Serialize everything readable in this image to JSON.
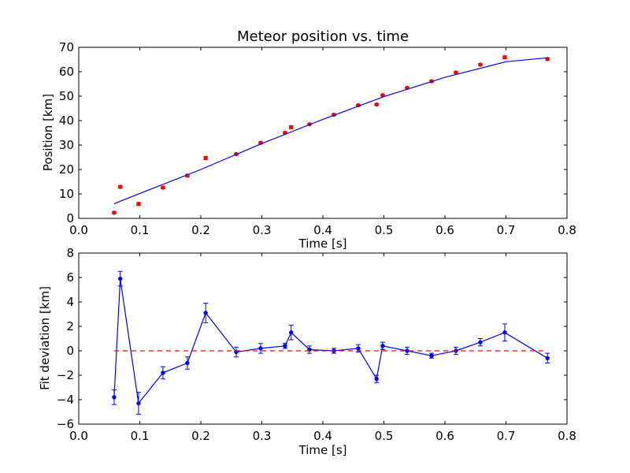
{
  "chart_data": [
    {
      "type": "scatter",
      "title": "Meteor position vs. time",
      "xlabel": "Time [s]",
      "ylabel": "Position [km]",
      "xlim": [
        0.0,
        0.8
      ],
      "ylim": [
        0,
        70
      ],
      "xticks": [
        "0.0",
        "0.1",
        "0.2",
        "0.3",
        "0.4",
        "0.5",
        "0.6",
        "0.7",
        "0.8"
      ],
      "yticks": [
        "0",
        "10",
        "20",
        "30",
        "40",
        "50",
        "60",
        "70"
      ],
      "grid": false,
      "series": [
        {
          "style": "points-with-errorbars",
          "color": "#ff0000",
          "x": [
            0.058,
            0.068,
            0.098,
            0.138,
            0.178,
            0.208,
            0.258,
            0.298,
            0.338,
            0.348,
            0.378,
            0.418,
            0.458,
            0.488,
            0.498,
            0.538,
            0.578,
            0.618,
            0.658,
            0.698,
            0.768
          ],
          "y": [
            2.3,
            12.9,
            5.9,
            12.6,
            17.5,
            24.7,
            26.3,
            30.9,
            35.0,
            37.3,
            38.5,
            42.4,
            46.3,
            46.6,
            50.4,
            53.4,
            56.1,
            59.7,
            62.9,
            65.9,
            65.2
          ],
          "err": [
            0.5,
            0.5,
            0.6,
            0.5,
            0.5,
            0.6,
            0.4,
            0.4,
            0.3,
            0.6,
            0.3,
            0.3,
            0.3,
            0.3,
            0.3,
            0.3,
            0.3,
            0.3,
            0.4,
            0.6,
            0.5
          ]
        },
        {
          "style": "line",
          "color": "#0000ff",
          "x": [
            0.058,
            0.1,
            0.2,
            0.3,
            0.4,
            0.5,
            0.6,
            0.7,
            0.768
          ],
          "y": [
            6.0,
            10.2,
            20.0,
            30.6,
            40.5,
            49.8,
            57.7,
            64.1,
            65.7
          ]
        }
      ]
    },
    {
      "type": "line",
      "xlabel": "Time [s]",
      "ylabel": "Fit deviation [km]",
      "xlim": [
        0.0,
        0.8
      ],
      "ylim": [
        -6,
        8
      ],
      "xticks": [
        "0.0",
        "0.1",
        "0.2",
        "0.3",
        "0.4",
        "0.5",
        "0.6",
        "0.7",
        "0.8"
      ],
      "yticks": [
        "−6",
        "−4",
        "−2",
        "0",
        "2",
        "4",
        "6",
        "8"
      ],
      "grid": false,
      "series": [
        {
          "style": "line-with-markers-and-errorbars",
          "color": "#0000ff",
          "x": [
            0.058,
            0.068,
            0.098,
            0.138,
            0.178,
            0.208,
            0.258,
            0.298,
            0.338,
            0.348,
            0.378,
            0.418,
            0.458,
            0.488,
            0.498,
            0.538,
            0.578,
            0.618,
            0.658,
            0.698,
            0.768
          ],
          "y": [
            -3.8,
            5.9,
            -4.3,
            -1.8,
            -1.0,
            3.1,
            -0.1,
            0.2,
            0.4,
            1.5,
            0.1,
            0.0,
            0.2,
            -2.3,
            0.4,
            0.0,
            -0.4,
            0.0,
            0.7,
            1.5,
            -0.6
          ],
          "err": [
            0.6,
            0.6,
            0.9,
            0.5,
            0.5,
            0.8,
            0.4,
            0.4,
            0.2,
            0.6,
            0.3,
            0.2,
            0.3,
            0.3,
            0.3,
            0.3,
            0.2,
            0.3,
            0.3,
            0.7,
            0.4
          ]
        },
        {
          "style": "dashed-reference-line",
          "color": "#ff0000",
          "x": [
            0.058,
            0.768
          ],
          "y": [
            0,
            0
          ]
        }
      ]
    }
  ]
}
